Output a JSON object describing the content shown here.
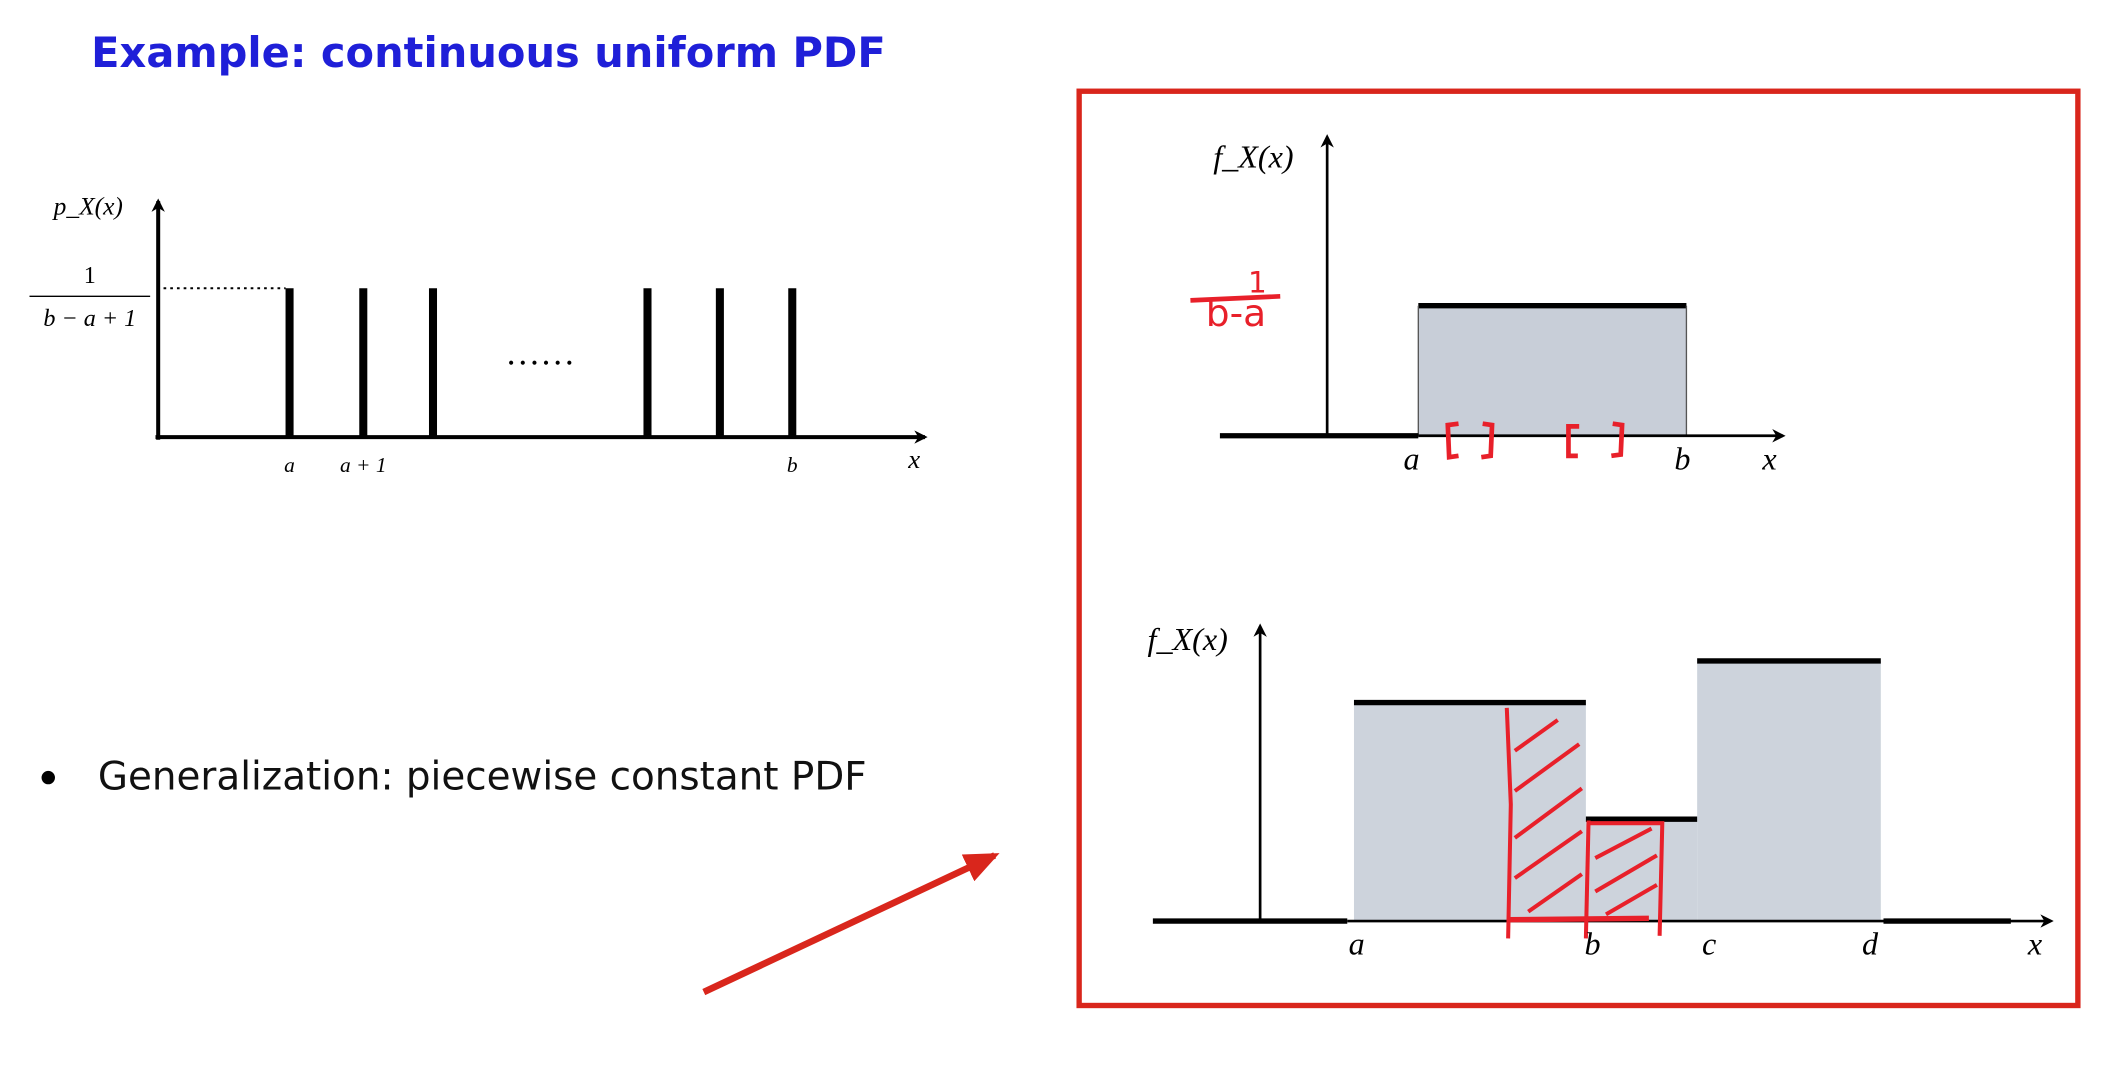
{
  "title": "Example: continuous uniform PDF",
  "bullet": "Generalization: piecewise constant PDF",
  "discrete_plot": {
    "y_label": "p_X(x)",
    "y_value_numerator": "1",
    "y_value_denominator": "b − a + 1",
    "ellipsis": "……",
    "x_labels": [
      "a",
      "a + 1",
      "b",
      "x"
    ]
  },
  "uniform_plot": {
    "y_label": "f_X(x)",
    "annotation_numerator": "1",
    "annotation_denominator": "b-a",
    "x_labels": [
      "a",
      "b",
      "x"
    ]
  },
  "piecewise_plot": {
    "y_label": "f_X(x)",
    "x_labels": [
      "a",
      "b",
      "c",
      "d",
      "x"
    ]
  }
}
